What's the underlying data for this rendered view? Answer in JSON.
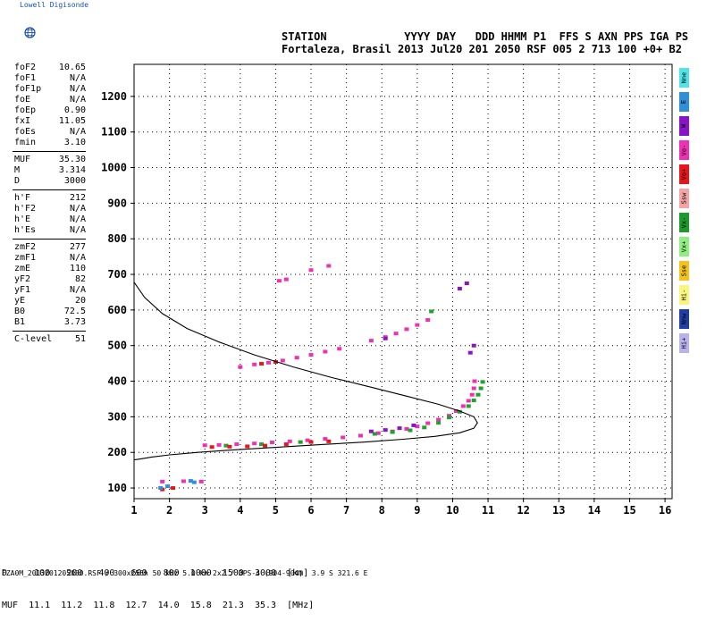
{
  "logo": {
    "text": "Lowell Digisonde",
    "icon": "globe-icon"
  },
  "header": {
    "line1": "STATION            YYYY DAY   DDD HHMM P1  FFS S AXN PPS IGA PS",
    "line2": "Fortaleza, Brasil 2013 Jul20 201 2050 RSF 005 2 713 100 +0+ B2"
  },
  "params": [
    {
      "k": "foF2",
      "v": "10.65"
    },
    {
      "k": "foF1",
      "v": "N/A"
    },
    {
      "k": "foF1p",
      "v": "N/A"
    },
    {
      "k": "foE",
      "v": "N/A"
    },
    {
      "k": "foEp",
      "v": "0.90"
    },
    {
      "k": "fxI",
      "v": "11.05"
    },
    {
      "k": "foEs",
      "v": "N/A"
    },
    {
      "k": "fmin",
      "v": "3.10"
    },
    {
      "sep": true
    },
    {
      "k": "MUF",
      "v": "35.30"
    },
    {
      "k": "M",
      "v": "3.314"
    },
    {
      "k": "D",
      "v": "3000"
    },
    {
      "sep": true
    },
    {
      "k": "h'F",
      "v": "212"
    },
    {
      "k": "h'F2",
      "v": "N/A"
    },
    {
      "k": "h'E",
      "v": "N/A"
    },
    {
      "k": "h'Es",
      "v": "N/A"
    },
    {
      "sep": true
    },
    {
      "k": "zmF2",
      "v": "277"
    },
    {
      "k": "zmF1",
      "v": "N/A"
    },
    {
      "k": "zmE",
      "v": "110"
    },
    {
      "k": "yF2",
      "v": "82"
    },
    {
      "k": "yF1",
      "v": "N/A"
    },
    {
      "k": "yE",
      "v": "20"
    },
    {
      "k": "B0",
      "v": "72.5"
    },
    {
      "k": "B1",
      "v": "3.73"
    },
    {
      "sep": true
    },
    {
      "k": "C-level",
      "v": "51"
    }
  ],
  "legend": [
    {
      "label": "Nne",
      "color": "#4fe3ea"
    },
    {
      "label": "E",
      "color": "#2f8fd8"
    },
    {
      "label": "W",
      "color": "#8a12c8"
    },
    {
      "label": "Vo-",
      "color": "#ef2fb4"
    },
    {
      "label": "Vo+",
      "color": "#e8161a"
    },
    {
      "label": "Ssw",
      "color": "#f6a3a3"
    },
    {
      "label": "Vx-",
      "color": "#1e9a2c"
    },
    {
      "label": "Vx+",
      "color": "#8ef07e"
    },
    {
      "label": "Sse",
      "color": "#f4c21a"
    },
    {
      "label": "Hi-",
      "color": "#f8f67c"
    },
    {
      "label": "Nnw",
      "color": "#1e3fa6"
    },
    {
      "label": "Hi+",
      "color": "#b8b2ee"
    }
  ],
  "muf_table": {
    "line1": "D     100   200   400   600   800  1000  1500  3000  [km]",
    "line2": "MUF  11.1  11.2  11.8  12.7  14.0  15.8  21.3  35.3  [MHz]"
  },
  "footer": "FZA0M_2013201205000.RSF / 300x256h 50 kHz 5.0 km 2x2 / DPS-4 (904-904)  3.9 S 321.6 E",
  "chart_data": {
    "type": "scatter",
    "x_ticks": [
      1,
      2,
      3,
      4,
      5,
      6,
      7,
      8,
      9,
      10,
      11,
      12,
      13,
      14,
      15,
      16
    ],
    "y_ticks": [
      100,
      200,
      300,
      400,
      500,
      600,
      700,
      800,
      900,
      1000,
      1100,
      1200
    ],
    "xlim": [
      1,
      16.2
    ],
    "ylim": [
      70,
      1290
    ],
    "grid": true,
    "profile_curve": [
      [
        1.0,
        678
      ],
      [
        1.3,
        635
      ],
      [
        1.8,
        590
      ],
      [
        2.5,
        548
      ],
      [
        3.4,
        510
      ],
      [
        4.4,
        474
      ],
      [
        5.5,
        440
      ],
      [
        6.6,
        410
      ],
      [
        7.7,
        383
      ],
      [
        8.7,
        358
      ],
      [
        9.6,
        335
      ],
      [
        10.2,
        316
      ],
      [
        10.6,
        300
      ],
      [
        10.7,
        283
      ],
      [
        10.6,
        268
      ],
      [
        10.2,
        255
      ],
      [
        9.5,
        245
      ],
      [
        8.6,
        237
      ],
      [
        7.5,
        229
      ],
      [
        6.3,
        222
      ],
      [
        5.0,
        214
      ],
      [
        3.8,
        207
      ],
      [
        2.8,
        200
      ],
      [
        2.0,
        193
      ],
      [
        1.5,
        187
      ],
      [
        1.2,
        182
      ],
      [
        1.0,
        179
      ]
    ],
    "traces": [
      {
        "name": "Vo-",
        "color": "#ef2fb4",
        "points": [
          [
            3.0,
            220
          ],
          [
            3.4,
            221
          ],
          [
            3.9,
            223
          ],
          [
            4.4,
            225
          ],
          [
            4.9,
            228
          ],
          [
            5.4,
            231
          ],
          [
            5.9,
            234
          ],
          [
            6.4,
            238
          ],
          [
            6.9,
            242
          ],
          [
            7.4,
            247
          ],
          [
            7.9,
            254
          ],
          [
            8.3,
            259
          ],
          [
            8.7,
            266
          ],
          [
            9.0,
            273
          ],
          [
            9.3,
            282
          ],
          [
            9.6,
            292
          ],
          [
            9.9,
            303
          ],
          [
            10.1,
            316
          ],
          [
            10.3,
            330
          ],
          [
            10.45,
            345
          ],
          [
            10.55,
            362
          ],
          [
            10.6,
            380
          ],
          [
            10.62,
            400
          ],
          [
            4.0,
            440
          ],
          [
            4.4,
            447
          ],
          [
            4.8,
            452
          ],
          [
            5.2,
            458
          ],
          [
            5.6,
            466
          ],
          [
            6.0,
            474
          ],
          [
            6.4,
            483
          ],
          [
            6.8,
            491
          ],
          [
            7.7,
            514
          ],
          [
            8.1,
            524
          ],
          [
            8.4,
            534
          ],
          [
            8.7,
            546
          ],
          [
            9.0,
            558
          ],
          [
            9.3,
            572
          ],
          [
            5.1,
            682
          ],
          [
            5.3,
            686
          ],
          [
            6.0,
            712
          ],
          [
            6.5,
            724
          ],
          [
            1.8,
            118
          ],
          [
            2.4,
            119
          ],
          [
            2.9,
            118
          ]
        ]
      },
      {
        "name": "Vx+",
        "color": "#1fa32c",
        "points": [
          [
            8.8,
            262
          ],
          [
            9.2,
            270
          ],
          [
            9.6,
            283
          ],
          [
            9.9,
            298
          ],
          [
            10.2,
            314
          ],
          [
            10.45,
            330
          ],
          [
            10.6,
            346
          ],
          [
            10.72,
            362
          ],
          [
            10.8,
            380
          ],
          [
            10.85,
            398
          ],
          [
            7.8,
            252
          ],
          [
            8.3,
            257
          ],
          [
            3.6,
            219
          ],
          [
            4.6,
            223
          ],
          [
            5.7,
            229
          ],
          [
            9.4,
            596
          ]
        ]
      },
      {
        "name": "Vo+",
        "color": "#e8161a",
        "points": [
          [
            3.2,
            215
          ],
          [
            3.7,
            216
          ],
          [
            4.2,
            217
          ],
          [
            4.7,
            219
          ],
          [
            5.3,
            223
          ],
          [
            6.0,
            229
          ],
          [
            6.5,
            231
          ],
          [
            4.6,
            449
          ],
          [
            5.0,
            454
          ],
          [
            1.8,
            96
          ],
          [
            2.1,
            100
          ]
        ]
      },
      {
        "name": "W",
        "color": "#8a12c8",
        "points": [
          [
            7.7,
            259
          ],
          [
            8.1,
            263
          ],
          [
            8.5,
            268
          ],
          [
            8.9,
            276
          ],
          [
            10.5,
            480
          ],
          [
            10.6,
            500
          ],
          [
            10.2,
            660
          ],
          [
            10.4,
            675
          ],
          [
            8.1,
            520
          ]
        ]
      },
      {
        "name": "E",
        "color": "#2f8fd8",
        "points": [
          [
            1.75,
            100
          ],
          [
            1.95,
            105
          ],
          [
            2.6,
            120
          ],
          [
            2.7,
            116
          ]
        ]
      }
    ]
  }
}
